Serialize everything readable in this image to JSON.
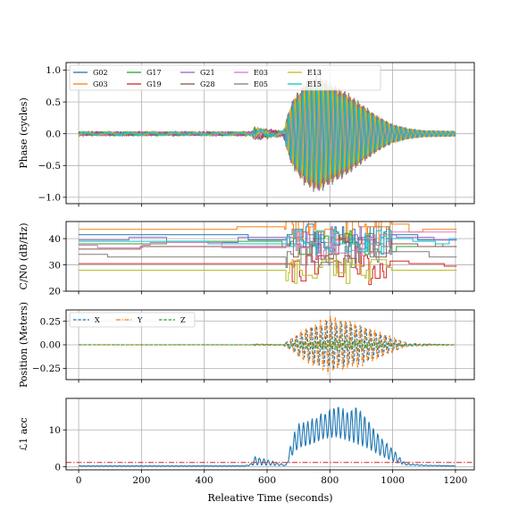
{
  "figure": {
    "xlabel": "Releative Time (seconds)",
    "x_ticks": [
      "0",
      "200",
      "400",
      "600",
      "800",
      "1000",
      "1200"
    ]
  },
  "chart_data": [
    {
      "type": "line",
      "panel": "phase",
      "ylabel": "Phase (cycles)",
      "xlim": [
        -40,
        1260
      ],
      "ylim": [
        -1.1,
        1.12
      ],
      "x_ticks": [
        0,
        200,
        400,
        600,
        800,
        1000,
        1200
      ],
      "y_ticks": [
        1.0,
        0.5,
        0.0,
        -0.5,
        -1.0
      ],
      "y_tick_labels": [
        "1.0",
        "0.5",
        "0.0",
        "−0.5",
        "−1.0"
      ],
      "grid": true,
      "legend_placement": "top-left",
      "series": [
        {
          "name": "G02",
          "color": "#1f77b4"
        },
        {
          "name": "G03",
          "color": "#ff7f0e"
        },
        {
          "name": "G17",
          "color": "#2ca02c"
        },
        {
          "name": "G19",
          "color": "#d62728"
        },
        {
          "name": "G21",
          "color": "#9467bd"
        },
        {
          "name": "G28",
          "color": "#8c564b"
        },
        {
          "name": "E03",
          "color": "#e377c2"
        },
        {
          "name": "E05",
          "color": "#7f7f7f"
        },
        {
          "name": "E13",
          "color": "#bcbd22"
        },
        {
          "name": "E15",
          "color": "#17becf"
        }
      ],
      "envelope": {
        "x": [
          0,
          550,
          560,
          650,
          680,
          720,
          760,
          800,
          850,
          900,
          950,
          1000,
          1050,
          1100,
          1200
        ],
        "amplitude": [
          0.04,
          0.04,
          0.12,
          0.05,
          0.55,
          0.85,
          0.98,
          0.85,
          0.7,
          0.5,
          0.3,
          0.15,
          0.08,
          0.05,
          0.04
        ]
      }
    },
    {
      "type": "line",
      "panel": "cn0",
      "ylabel": "C/N0 (dB/Hz)",
      "xlim": [
        -40,
        1260
      ],
      "ylim": [
        20,
        46.5
      ],
      "x_ticks": [
        0,
        200,
        400,
        600,
        800,
        1000,
        1200
      ],
      "y_ticks": [
        20,
        30,
        40
      ],
      "y_tick_labels": [
        "20",
        "30",
        "40"
      ],
      "grid": true,
      "series": [
        {
          "name": "G02",
          "color": "#1f77b4",
          "base": 40.5
        },
        {
          "name": "G03",
          "color": "#ff7f0e",
          "base": 43.5
        },
        {
          "name": "G17",
          "color": "#2ca02c",
          "base": 38.0
        },
        {
          "name": "G19",
          "color": "#d62728",
          "base": 30.5
        },
        {
          "name": "G21",
          "color": "#9467bd",
          "base": 39.5
        },
        {
          "name": "G28",
          "color": "#8c564b",
          "base": 36.0
        },
        {
          "name": "E03",
          "color": "#e377c2",
          "base": 37.5
        },
        {
          "name": "E05",
          "color": "#7f7f7f",
          "base": 34.0
        },
        {
          "name": "E13",
          "color": "#bcbd22",
          "base": 28.0
        },
        {
          "name": "E15",
          "color": "#17becf",
          "base": 39.0
        }
      ]
    },
    {
      "type": "line",
      "panel": "position",
      "ylabel": "Position (Meters)",
      "xlim": [
        -40,
        1260
      ],
      "ylim": [
        -0.37,
        0.37
      ],
      "x_ticks": [
        0,
        200,
        400,
        600,
        800,
        1000,
        1200
      ],
      "y_ticks": [
        0.25,
        0.0,
        -0.25
      ],
      "y_tick_labels": [
        "0.25",
        "0.00",
        "−0.25"
      ],
      "grid": true,
      "legend_placement": "top-left",
      "series": [
        {
          "name": "X",
          "color": "#1f77b4",
          "dash": "dashed",
          "peak": 0.29
        },
        {
          "name": "Y",
          "color": "#ff7f0e",
          "dash": "dashdot",
          "peak": 0.33
        },
        {
          "name": "Z",
          "color": "#2ca02c",
          "dash": "dashed",
          "peak": 0.06
        }
      ]
    },
    {
      "type": "line",
      "panel": "accuracy",
      "ylabel": "ℒ1 acc",
      "xlim": [
        -40,
        1260
      ],
      "ylim": [
        -0.8,
        18.5
      ],
      "x_ticks": [
        0,
        200,
        400,
        600,
        800,
        1000,
        1200
      ],
      "y_ticks": [
        10,
        0
      ],
      "y_tick_labels": [
        "10",
        "0"
      ],
      "grid": true,
      "threshold": 1.2,
      "threshold_color": "#d62728",
      "series_color": "#1f77b4",
      "envelope": {
        "x": [
          0,
          530,
          550,
          560,
          660,
          680,
          700,
          740,
          780,
          820,
          860,
          890,
          920,
          960,
          1000,
          1040,
          1100,
          1200
        ],
        "max": [
          0.3,
          0.3,
          1.0,
          3.0,
          0.5,
          8.0,
          12.0,
          13.0,
          15.0,
          17.0,
          15.5,
          17.0,
          13.0,
          8.5,
          5.0,
          1.0,
          0.5,
          0.3
        ],
        "min": [
          0.2,
          0.2,
          0.4,
          0.5,
          0.3,
          3.0,
          5.0,
          6.0,
          7.5,
          8.0,
          7.0,
          6.0,
          5.0,
          3.0,
          1.5,
          0.5,
          0.3,
          0.2
        ]
      }
    }
  ]
}
